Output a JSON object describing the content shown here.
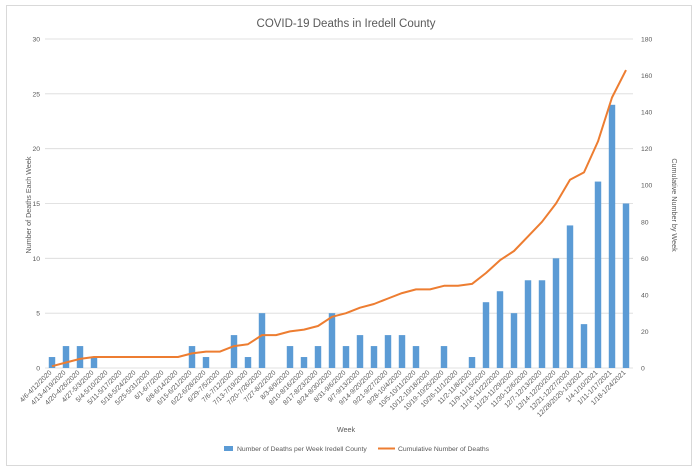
{
  "chart_data": {
    "type": "bar",
    "title": "COVID-19 Deaths in Iredell County",
    "xlabel": "Week",
    "ylabel": "Number of Deaths Each Week",
    "y2label": "Cumulative Number by Week",
    "ylim": [
      0,
      30
    ],
    "y2lim": [
      0,
      180
    ],
    "yticks": [
      0,
      5,
      10,
      15,
      20,
      25,
      30
    ],
    "y2ticks": [
      0,
      20,
      40,
      60,
      80,
      100,
      120,
      140,
      160,
      180
    ],
    "grid": true,
    "legend_position": "bottom",
    "colors": {
      "bars": "#5b9bd5",
      "line": "#ed7d31",
      "grid": "#d9d9d9",
      "text": "#595959"
    },
    "categories": [
      "4/6-4/12/2020",
      "4/13-4/19/2020",
      "4/20-4/26/2020",
      "4/27-5/3/2020",
      "5/4-5/10/2020",
      "5/11-5/17/2020",
      "5/18-5/24/2020",
      "5/25-5/31/2020",
      "6/1-6/7/2020",
      "6/8-6/14/2020",
      "6/15-6/21/2020",
      "6/22-6/28/2020",
      "6/29-7/5/2020",
      "7/6-7/12/2020",
      "7/13-7/19/2020",
      "7/20-7/26/2020",
      "7/27-8/2/2020",
      "8/3-8/9/2020",
      "8/10-8/16/2020",
      "8/17-8/23/2020",
      "8/24-8/30/2020",
      "8/31-9/6/2020",
      "9/7-9/13/2020",
      "9/14-9/20/2020",
      "9/21-9/27/2020",
      "9/28-10/4/2020",
      "10/5-10/11/2020",
      "10/12-10/18/2020",
      "10/19-10/25/2020",
      "10/26-11/1/2020",
      "11/2-11/8/2020",
      "11/9-11/15/2020",
      "11/16-11/22/2020",
      "11/23-11/29/2020",
      "11/30-12/6/2020",
      "12/7-12/13/2020",
      "12/14-12/20/2020",
      "12/21-12/27/2020",
      "12/28/2020-1/3/2021",
      "1/4-1/10/2021",
      "1/11-1/17/2021",
      "1/18-1/24/2021"
    ],
    "tick_labels": [
      "4/6-4/12/2020",
      "4/13-4/19/2020",
      "4/20-4/26/2020",
      "4/27-5/3/2020",
      "5/4-5/10/2020",
      "5/11-5/17/2020",
      "5/18-5/24/2020",
      "5/25-5/31/2020",
      "6/1-6/7/2020",
      "6/8-6/14/2020",
      "6/15-6/21/2020",
      "6/22-6/28/2020",
      "6/29-7/5/2020",
      "7/6-7/12/2020",
      "7/13-7/19/2020",
      "7/20-7/26/2020",
      "7/27-8/2/2020",
      "8/3-8/9/2020",
      "8/10-8/16/2020",
      "8/17-8/23/2020",
      "8/24-8/30/2020",
      "8/31-9/6/2020",
      "9/7-9/13/2020",
      "9/14-9/20/2020",
      "9/21-9/27/2020",
      "9/28-10/4/2020",
      "10/5-10/11/2020",
      "10/12-10/18/2020",
      "10/19-10/25/2020",
      "10/26-11/1/2020",
      "11/2-11/8/2020",
      "11/9-11/15/2020",
      "11/16-11/22/2020",
      "11/23-11/29/2020",
      "11/30-12/6/2020",
      "12/7-12/13/2020",
      "12/14-12/20/2020",
      "12/21-12/27/2020",
      "12/28/2020-1/3/2021",
      "1/4-1/10/2021",
      "1/11-1/17/2021",
      "1/18-1/24/2021"
    ],
    "series": [
      {
        "name": "Number of Deaths per Week Iredell County",
        "type": "bar",
        "axis": "left",
        "values": [
          1,
          2,
          2,
          1,
          0,
          0,
          0,
          0,
          0,
          0,
          2,
          1,
          0,
          3,
          1,
          5,
          0,
          2,
          1,
          2,
          5,
          2,
          3,
          2,
          3,
          3,
          2,
          0,
          2,
          0,
          1,
          6,
          7,
          5,
          8,
          8,
          10,
          13,
          4,
          17,
          24,
          15
        ]
      },
      {
        "name": "Cumulative Number of Deaths",
        "type": "line",
        "axis": "right",
        "values": [
          1,
          3,
          5,
          6,
          6,
          6,
          6,
          6,
          6,
          6,
          8,
          9,
          9,
          12,
          13,
          18,
          18,
          20,
          21,
          23,
          28,
          30,
          33,
          35,
          38,
          41,
          43,
          43,
          45,
          45,
          46,
          52,
          59,
          64,
          72,
          80,
          90,
          103,
          107,
          124,
          148,
          163
        ]
      }
    ]
  }
}
